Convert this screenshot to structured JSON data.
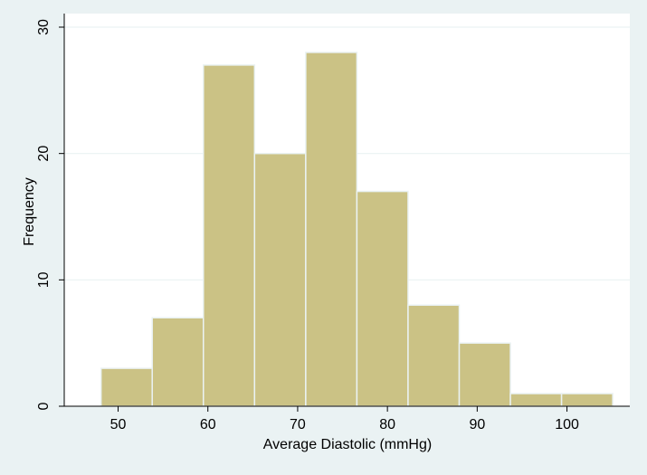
{
  "chart_data": {
    "type": "histogram",
    "xlabel": "Average Diastolic (mmHg)",
    "ylabel": "Frequency",
    "xlim": [
      44,
      107
    ],
    "ylim": [
      0,
      30
    ],
    "x_ticks": [
      50,
      60,
      70,
      80,
      90,
      100
    ],
    "y_ticks": [
      0,
      10,
      20,
      30
    ],
    "bins": [
      {
        "start": 48.1,
        "end": 53.8,
        "count": 3
      },
      {
        "start": 53.8,
        "end": 59.5,
        "count": 7
      },
      {
        "start": 59.5,
        "end": 65.2,
        "count": 27
      },
      {
        "start": 65.2,
        "end": 70.9,
        "count": 20
      },
      {
        "start": 70.9,
        "end": 76.6,
        "count": 28
      },
      {
        "start": 76.6,
        "end": 82.3,
        "count": 17
      },
      {
        "start": 82.3,
        "end": 88.0,
        "count": 8
      },
      {
        "start": 88.0,
        "end": 93.7,
        "count": 5
      },
      {
        "start": 93.7,
        "end": 99.4,
        "count": 1
      },
      {
        "start": 99.4,
        "end": 105.1,
        "count": 1
      }
    ],
    "grid": true,
    "colors": {
      "bar_fill": "#cbc285",
      "bar_stroke": "#eaf2f3",
      "plot_background": "#ffffff",
      "outer_background": "#eaf2f3",
      "grid": "#eaf2f3",
      "axis": "#000000"
    }
  }
}
